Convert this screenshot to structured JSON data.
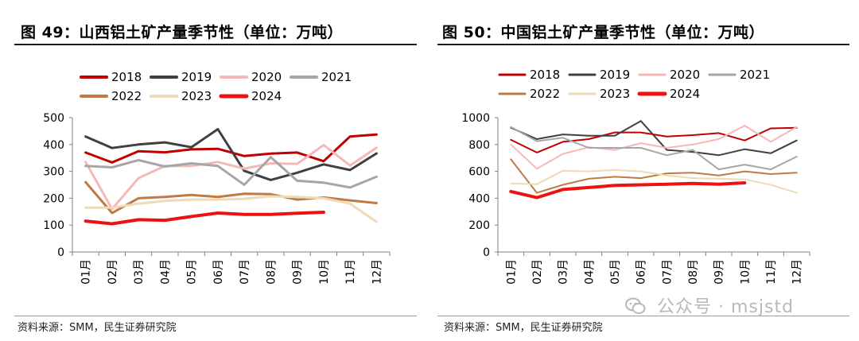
{
  "left": {
    "title": "图 49：山西铝土矿产量季节性（单位：万吨）",
    "source": "资料来源：SMM，民生证券研究院"
  },
  "right": {
    "title": "图 50：中国铝土矿产量季节性（单位：万吨）",
    "source": "资料来源：SMM，民生证券研究院"
  },
  "watermark": {
    "text": "公众号 · msjstd",
    "icon": "wechat-icon"
  },
  "chart_data": [
    {
      "type": "line",
      "title": "图 49：山西铝土矿产量季节性（单位：万吨）",
      "categories": [
        "01月",
        "02月",
        "03月",
        "04月",
        "05月",
        "06月",
        "07月",
        "08月",
        "09月",
        "10月",
        "11月",
        "12月"
      ],
      "ylim": [
        0,
        500
      ],
      "yticks": [
        0,
        100,
        200,
        300,
        400,
        500
      ],
      "grid": false,
      "legend_position": "top",
      "series": [
        {
          "name": "2018",
          "color": "#c00000",
          "width": 3,
          "values": [
            370,
            333,
            375,
            371,
            382,
            384,
            357,
            366,
            370,
            338,
            430,
            437
          ]
        },
        {
          "name": "2019",
          "color": "#404040",
          "width": 3,
          "values": [
            430,
            387,
            400,
            408,
            390,
            457,
            302,
            268,
            295,
            326,
            305,
            367
          ]
        },
        {
          "name": "2020",
          "color": "#f4b8b8",
          "width": 3,
          "values": [
            335,
            160,
            275,
            320,
            320,
            335,
            310,
            330,
            328,
            398,
            322,
            388
          ]
        },
        {
          "name": "2021",
          "color": "#a6a6a6",
          "width": 3,
          "values": [
            320,
            315,
            342,
            318,
            330,
            320,
            250,
            353,
            265,
            258,
            240,
            280
          ]
        },
        {
          "name": "2022",
          "color": "#c07a45",
          "width": 3,
          "values": [
            260,
            145,
            200,
            205,
            212,
            205,
            217,
            215,
            195,
            203,
            192,
            182
          ]
        },
        {
          "name": "2023",
          "color": "#ecdbb6",
          "width": 3,
          "values": [
            165,
            165,
            180,
            190,
            195,
            195,
            198,
            207,
            205,
            200,
            180,
            112
          ]
        },
        {
          "name": "2024",
          "color": "#ee1111",
          "width": 4,
          "values": [
            115,
            105,
            120,
            118,
            132,
            145,
            140,
            140,
            144,
            148,
            null,
            null
          ]
        }
      ]
    },
    {
      "type": "line",
      "title": "图 50：中国铝土矿产量季节性（单位：万吨）",
      "categories": [
        "01月",
        "02月",
        "03月",
        "04月",
        "05月",
        "06月",
        "07月",
        "08月",
        "09月",
        "10月",
        "11月",
        "12月"
      ],
      "ylim": [
        0,
        1000
      ],
      "yticks": [
        0,
        200,
        400,
        600,
        800,
        1000
      ],
      "grid": false,
      "legend_position": "top",
      "series": [
        {
          "name": "2018",
          "color": "#c00000",
          "width": 2,
          "values": [
            835,
            740,
            820,
            840,
            890,
            890,
            860,
            870,
            885,
            830,
            920,
            925
          ]
        },
        {
          "name": "2019",
          "color": "#404040",
          "width": 2,
          "values": [
            925,
            840,
            875,
            865,
            865,
            975,
            760,
            745,
            720,
            765,
            735,
            830
          ]
        },
        {
          "name": "2020",
          "color": "#f4b8b8",
          "width": 2,
          "values": [
            800,
            620,
            730,
            780,
            760,
            810,
            775,
            800,
            840,
            940,
            820,
            930
          ]
        },
        {
          "name": "2021",
          "color": "#a6a6a6",
          "width": 2,
          "values": [
            930,
            825,
            850,
            775,
            775,
            775,
            720,
            760,
            615,
            650,
            615,
            710
          ]
        },
        {
          "name": "2022",
          "color": "#c07a45",
          "width": 2,
          "values": [
            690,
            440,
            500,
            545,
            560,
            550,
            585,
            590,
            570,
            600,
            580,
            590
          ]
        },
        {
          "name": "2023",
          "color": "#ecdbb6",
          "width": 2,
          "values": [
            510,
            505,
            605,
            600,
            610,
            600,
            570,
            550,
            545,
            540,
            500,
            440
          ]
        },
        {
          "name": "2024",
          "color": "#ee1111",
          "width": 4,
          "values": [
            450,
            405,
            465,
            480,
            495,
            500,
            505,
            510,
            505,
            515,
            null,
            null
          ]
        }
      ]
    }
  ]
}
